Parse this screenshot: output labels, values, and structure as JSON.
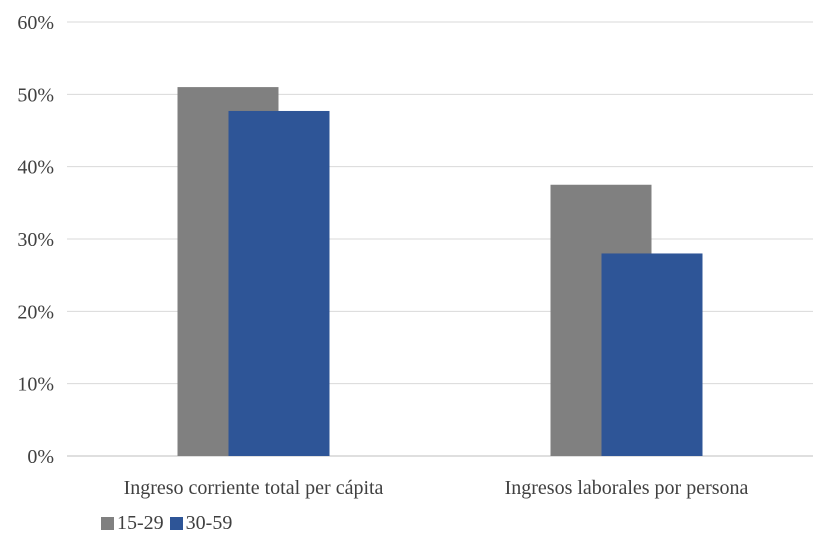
{
  "chart_data": {
    "type": "bar",
    "categories": [
      "Ingreso corriente total per cápita",
      "Ingresos laborales por persona"
    ],
    "series": [
      {
        "name": "15-29",
        "values": [
          51.0,
          37.5
        ],
        "color": "#808080"
      },
      {
        "name": "30-59",
        "values": [
          47.7,
          28.0
        ],
        "color": "#2E5597"
      }
    ],
    "ylim": [
      0,
      60
    ],
    "yticks": [
      "0%",
      "10%",
      "20%",
      "30%",
      "40%",
      "50%",
      "60%"
    ],
    "grid": true,
    "legend_position": "bottom-left"
  }
}
